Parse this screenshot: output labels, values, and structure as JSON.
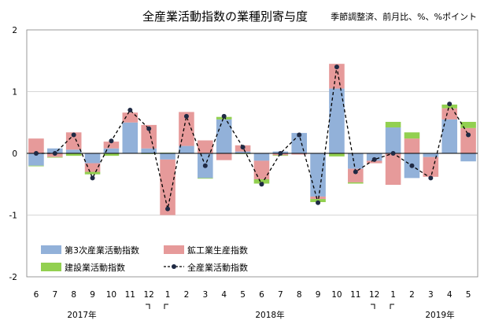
{
  "chart_data": {
    "type": "bar",
    "title": "全産業活動指数の業種別寄与度",
    "note": "季節調整済、前月比、%、%ポイント",
    "ylim": [
      -2,
      2
    ],
    "yticks": [
      "2",
      "1",
      "0",
      "-1",
      "-2"
    ],
    "categories": [
      "6",
      "7",
      "8",
      "9",
      "10",
      "11",
      "12",
      "1",
      "2",
      "3",
      "4",
      "5",
      "6",
      "7",
      "8",
      "9",
      "10",
      "11",
      "12",
      "1",
      "2",
      "3",
      "4",
      "5"
    ],
    "year_labels": [
      "2017年",
      "2018年",
      "2019年"
    ],
    "series": [
      {
        "name": "第3次産業活動指数",
        "type": "bar",
        "color": "#92b1d9",
        "values": [
          -0.2,
          0.08,
          0.06,
          -0.16,
          0.08,
          0.5,
          0.08,
          -0.1,
          0.12,
          -0.4,
          0.55,
          0.03,
          -0.12,
          0.03,
          0.33,
          -0.7,
          1.05,
          -0.25,
          -0.12,
          0.42,
          -0.4,
          -0.06,
          0.55,
          -0.13
        ]
      },
      {
        "name": "鉱工業生産指数",
        "type": "bar",
        "color": "#e69a9a",
        "values": [
          0.24,
          -0.06,
          0.28,
          -0.14,
          0.11,
          0.16,
          0.38,
          -0.9,
          0.55,
          0.21,
          -0.11,
          0.1,
          -0.3,
          -0.03,
          -0.02,
          -0.04,
          0.4,
          -0.22,
          -0.04,
          -0.51,
          0.24,
          -0.32,
          0.18,
          0.41
        ]
      },
      {
        "name": "建設業活動指数",
        "type": "bar",
        "color": "#92d050",
        "values": [
          -0.01,
          -0.01,
          -0.04,
          -0.04,
          -0.04,
          0.0,
          -0.01,
          0.01,
          0.0,
          -0.01,
          0.04,
          -0.01,
          -0.07,
          -0.01,
          0.0,
          -0.05,
          -0.05,
          -0.02,
          0.0,
          0.09,
          0.1,
          0.0,
          0.06,
          0.1
        ]
      },
      {
        "name": "全産業活動指数",
        "type": "line",
        "color": "#000000",
        "values": [
          0.0,
          0.0,
          0.3,
          -0.4,
          0.2,
          0.7,
          0.4,
          -0.9,
          0.6,
          -0.2,
          0.6,
          0.1,
          -0.5,
          0.0,
          0.3,
          -0.8,
          1.4,
          -0.3,
          -0.1,
          0.0,
          -0.2,
          -0.4,
          0.8,
          0.3
        ]
      }
    ]
  }
}
